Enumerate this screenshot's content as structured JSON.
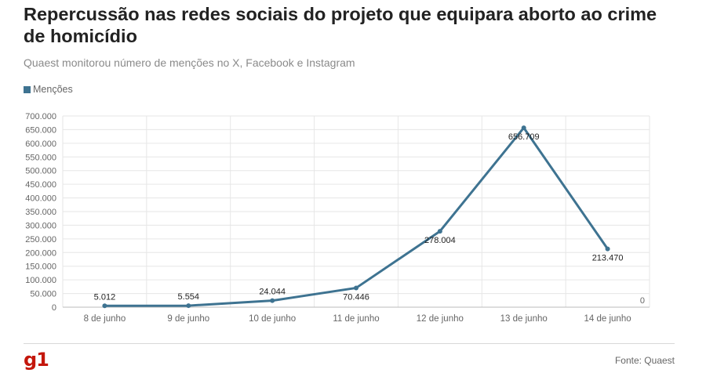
{
  "header": {
    "title": "Repercussão nas redes sociais do projeto que equipara aborto ao crime de homicídio",
    "subtitle": "Quaest monitorou número de menções no X, Facebook e Instagram"
  },
  "footer": {
    "logo": "g1",
    "source": "Fonte: Quaest"
  },
  "colors": {
    "series": "#3e7391",
    "grid": "#e6e6e6",
    "logo": "#c4170c"
  },
  "chart_data": {
    "type": "line",
    "title": "Repercussão nas redes sociais do projeto que equipara aborto ao crime de homicídio",
    "subtitle": "Quaest monitorou número de menções no X, Facebook e Instagram",
    "categories": [
      "8 de junho",
      "9 de junho",
      "10 de junho",
      "11 de junho",
      "12 de junho",
      "13 de junho",
      "14 de junho"
    ],
    "series": [
      {
        "name": "Menções",
        "values": [
          5012,
          5554,
          24044,
          70446,
          278004,
          656709,
          213470
        ],
        "labels": [
          "5.012",
          "5.554",
          "24.044",
          "70.446",
          "278.004",
          "656.709",
          "213.470"
        ]
      }
    ],
    "yticks": [
      0,
      50000,
      100000,
      150000,
      200000,
      250000,
      300000,
      350000,
      400000,
      450000,
      500000,
      550000,
      600000,
      650000,
      700000
    ],
    "ytick_labels": [
      "0",
      "50.000",
      "100.000",
      "150.000",
      "200.000",
      "250.000",
      "300.000",
      "350.000",
      "400.000",
      "450.000",
      "500.000",
      "550.000",
      "600.000",
      "650.000",
      "700.000"
    ],
    "ylim": [
      0,
      700000
    ],
    "right_axis_label": "0",
    "grid": true,
    "legend": "top-left"
  }
}
